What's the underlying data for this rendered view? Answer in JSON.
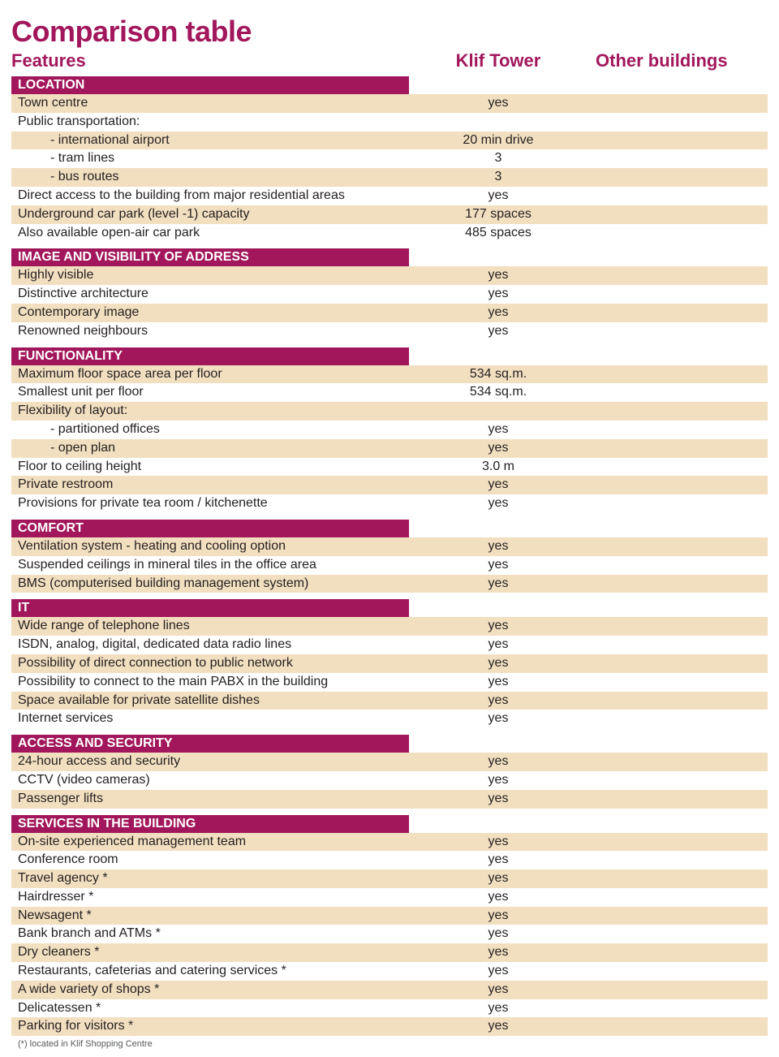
{
  "title": "Comparison table",
  "columns": {
    "features": "Features",
    "col2": "Klif Tower",
    "col3": "Other buildings"
  },
  "colors": {
    "accent": "#a2175b",
    "shade": "#f2dfc0",
    "text": "#231f20",
    "bg": "#ffffff"
  },
  "sections": [
    {
      "name": "LOCATION",
      "rows": [
        {
          "label": "Town centre",
          "value": "yes",
          "shaded": true
        },
        {
          "label": "Public transportation:",
          "value": ""
        },
        {
          "label": "- international airport",
          "value": "20 min drive",
          "shaded": true,
          "indent": true
        },
        {
          "label": "- tram lines",
          "value": "3",
          "indent": true
        },
        {
          "label": "- bus routes",
          "value": "3",
          "shaded": true,
          "indent": true
        },
        {
          "label": "Direct access to the building from major residential areas",
          "value": "yes"
        },
        {
          "label": "Underground car park (level -1) capacity",
          "value": "177 spaces",
          "shaded": true
        },
        {
          "label": "Also available open-air car park",
          "value": "485 spaces"
        }
      ]
    },
    {
      "name": "IMAGE AND VISIBILITY OF ADDRESS",
      "rows": [
        {
          "label": "Highly visible",
          "value": "yes",
          "shaded": true
        },
        {
          "label": "Distinctive architecture",
          "value": "yes"
        },
        {
          "label": "Contemporary image",
          "value": "yes",
          "shaded": true
        },
        {
          "label": "Renowned neighbours",
          "value": "yes"
        }
      ]
    },
    {
      "name": "FUNCTIONALITY",
      "rows": [
        {
          "label": "Maximum floor space area per floor",
          "value": "534 sq.m.",
          "shaded": true
        },
        {
          "label": "Smallest unit per floor",
          "value": "534 sq.m."
        },
        {
          "label": "Flexibility of layout:",
          "value": "",
          "shaded": true
        },
        {
          "label": "- partitioned offices",
          "value": "yes",
          "indent": true
        },
        {
          "label": "- open plan",
          "value": "yes",
          "shaded": true,
          "indent": true
        },
        {
          "label": "Floor to ceiling height",
          "value": "3.0 m"
        },
        {
          "label": "Private restroom",
          "value": "yes",
          "shaded": true
        },
        {
          "label": "Provisions for private tea room / kitchenette",
          "value": "yes"
        }
      ]
    },
    {
      "name": "COMFORT",
      "rows": [
        {
          "label": "Ventilation system - heating and cooling option",
          "value": "yes",
          "shaded": true
        },
        {
          "label": "Suspended ceilings in mineral tiles in the office area",
          "value": "yes"
        },
        {
          "label": "BMS (computerised building management system)",
          "value": "yes",
          "shaded": true
        }
      ]
    },
    {
      "name": "IT",
      "rows": [
        {
          "label": "Wide range of telephone lines",
          "value": "yes",
          "shaded": true
        },
        {
          "label": "ISDN, analog, digital, dedicated data radio lines",
          "value": "yes"
        },
        {
          "label": "Possibility of direct connection to public network",
          "value": "yes",
          "shaded": true
        },
        {
          "label": "Possibility to connect to the main PABX in the building",
          "value": "yes"
        },
        {
          "label": "Space available for private satellite dishes",
          "value": "yes",
          "shaded": true
        },
        {
          "label": "Internet services",
          "value": "yes"
        }
      ]
    },
    {
      "name": "ACCESS AND SECURITY",
      "rows": [
        {
          "label": "24-hour access and security",
          "value": "yes",
          "shaded": true
        },
        {
          "label": "CCTV (video cameras)",
          "value": "yes"
        },
        {
          "label": "Passenger lifts",
          "value": "yes",
          "shaded": true
        }
      ]
    },
    {
      "name": "SERVICES IN THE BUILDING",
      "rows": [
        {
          "label": "On-site experienced management team",
          "value": "yes",
          "shaded": true
        },
        {
          "label": "Conference room",
          "value": "yes"
        },
        {
          "label": "Travel agency *",
          "value": "yes",
          "shaded": true
        },
        {
          "label": "Hairdresser *",
          "value": "yes"
        },
        {
          "label": "Newsagent *",
          "value": "yes",
          "shaded": true
        },
        {
          "label": "Bank branch and ATMs *",
          "value": "yes"
        },
        {
          "label": "Dry cleaners *",
          "value": "yes",
          "shaded": true
        },
        {
          "label": "Restaurants, cafeterias and catering services *",
          "value": "yes"
        },
        {
          "label": "A wide variety of shops *",
          "value": "yes",
          "shaded": true
        },
        {
          "label": "Delicatessen *",
          "value": "yes"
        },
        {
          "label": "Parking for visitors *",
          "value": "yes",
          "shaded": true
        }
      ]
    }
  ],
  "footnote": "(*) located in Klif Shopping Centre"
}
